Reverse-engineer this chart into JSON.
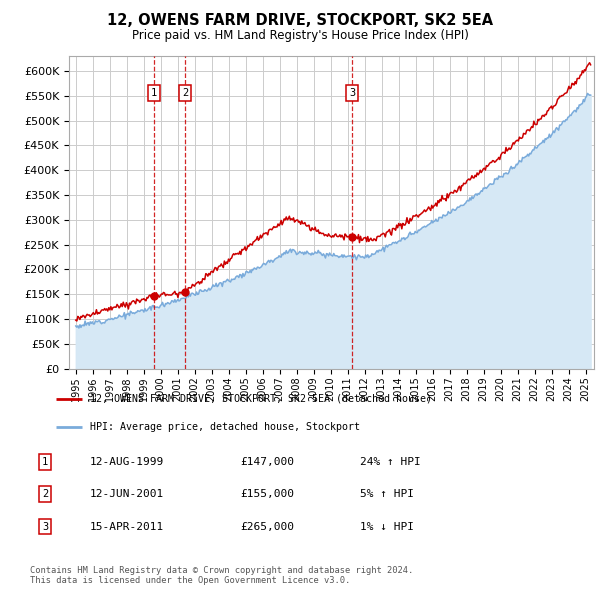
{
  "title": "12, OWENS FARM DRIVE, STOCKPORT, SK2 5EA",
  "subtitle": "Price paid vs. HM Land Registry's House Price Index (HPI)",
  "ylabel_ticks": [
    "£0",
    "£50K",
    "£100K",
    "£150K",
    "£200K",
    "£250K",
    "£300K",
    "£350K",
    "£400K",
    "£450K",
    "£500K",
    "£550K",
    "£600K"
  ],
  "ylim": [
    0,
    630000
  ],
  "xlim_start": 1994.6,
  "xlim_end": 2025.5,
  "sale_dates": [
    1999.61,
    2001.44,
    2011.28
  ],
  "sale_prices": [
    147000,
    155000,
    265000
  ],
  "sale_labels": [
    "1",
    "2",
    "3"
  ],
  "legend_line1": "12, OWENS FARM DRIVE, STOCKPORT, SK2 5EA (detached house)",
  "legend_line2": "HPI: Average price, detached house, Stockport",
  "table_data": [
    {
      "num": "1",
      "date": "12-AUG-1999",
      "price": "£147,000",
      "change": "24% ↑ HPI"
    },
    {
      "num": "2",
      "date": "12-JUN-2001",
      "price": "£155,000",
      "change": "5% ↑ HPI"
    },
    {
      "num": "3",
      "date": "15-APR-2011",
      "price": "£265,000",
      "change": "1% ↓ HPI"
    }
  ],
  "footnote": "Contains HM Land Registry data © Crown copyright and database right 2024.\nThis data is licensed under the Open Government Licence v3.0.",
  "line_color_red": "#cc0000",
  "line_color_blue": "#7aabdb",
  "shade_color": "#d6e8f5",
  "grid_color": "#cccccc",
  "bg_color": "#ffffff"
}
